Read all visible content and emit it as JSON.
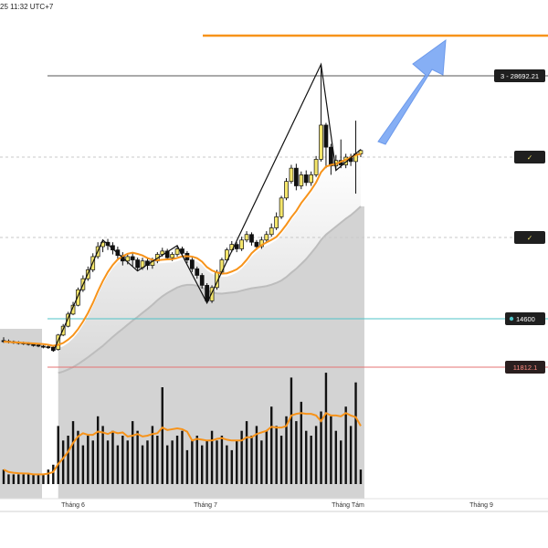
{
  "header": {
    "timestamp": "25 11:32 UTC+7"
  },
  "chart_data": {
    "type": "candlestick",
    "x_axis": {
      "tick_labels": [
        "Tháng 6",
        "Tháng 7",
        "Tháng Tám",
        "Tháng 9"
      ]
    },
    "price_labels": {
      "resistance": "3 - 28692.21",
      "check1": "✓",
      "check2": "✓",
      "level_14600": "14600",
      "level_11812": "11812.1"
    },
    "lines": {
      "target_color": "#f7931a",
      "resistance_color": "#555555",
      "teal_color": "#4fc3c7",
      "red_color": "#e57373"
    },
    "colors": {
      "candle_up": "#f5e66b",
      "candle_down": "#111111",
      "ma": "#f7931a",
      "arrow": "#7aa7f5",
      "volume": "#111111"
    },
    "candles": [
      [
        1.0,
        0.9,
        1.3,
        0.8
      ],
      [
        0.95,
        0.85,
        1.1,
        0.75
      ],
      [
        0.9,
        0.8,
        1.0,
        0.7
      ],
      [
        0.85,
        0.75,
        0.95,
        0.65
      ],
      [
        0.8,
        0.7,
        0.9,
        0.6
      ],
      [
        0.75,
        0.65,
        0.85,
        0.55
      ],
      [
        0.7,
        0.55,
        0.8,
        0.45
      ],
      [
        0.6,
        0.5,
        0.7,
        0.4
      ],
      [
        0.5,
        0.4,
        0.6,
        0.3
      ],
      [
        0.45,
        0.35,
        0.55,
        0.25
      ],
      [
        0.4,
        0.1,
        0.5,
        0.0
      ],
      [
        0.2,
        1.5,
        1.6,
        0.1
      ],
      [
        1.5,
        2.3,
        2.5,
        1.4
      ],
      [
        2.3,
        3.4,
        3.6,
        2.2
      ],
      [
        3.4,
        4.2,
        4.5,
        3.3
      ],
      [
        4.2,
        5.6,
        5.8,
        4.1
      ],
      [
        5.6,
        6.6,
        6.9,
        5.4
      ],
      [
        6.6,
        7.4,
        7.7,
        6.4
      ],
      [
        7.4,
        8.6,
        8.9,
        7.2
      ],
      [
        8.6,
        9.5,
        9.9,
        8.4
      ],
      [
        9.5,
        9.9,
        10.1,
        9.0
      ],
      [
        9.9,
        9.6,
        10.2,
        9.2
      ],
      [
        9.6,
        9.2,
        9.9,
        8.8
      ],
      [
        9.2,
        8.7,
        9.5,
        8.3
      ],
      [
        8.7,
        8.2,
        9.0,
        7.8
      ],
      [
        8.2,
        8.6,
        8.9,
        7.9
      ],
      [
        8.6,
        8.3,
        8.9,
        7.7
      ],
      [
        8.3,
        7.6,
        8.5,
        7.3
      ],
      [
        7.6,
        8.2,
        8.5,
        7.4
      ],
      [
        8.2,
        7.8,
        8.4,
        7.4
      ],
      [
        7.8,
        8.2,
        8.5,
        7.5
      ],
      [
        8.2,
        8.8,
        9.0,
        8.0
      ],
      [
        8.8,
        9.1,
        9.4,
        8.6
      ],
      [
        9.1,
        8.5,
        9.3,
        8.3
      ],
      [
        8.5,
        8.8,
        9.0,
        8.2
      ],
      [
        8.8,
        9.3,
        9.6,
        8.6
      ],
      [
        9.3,
        8.9,
        9.5,
        8.6
      ],
      [
        8.9,
        8.3,
        9.1,
        8.0
      ],
      [
        8.3,
        7.5,
        8.5,
        7.2
      ],
      [
        7.5,
        6.9,
        7.7,
        6.6
      ],
      [
        6.9,
        6.0,
        7.1,
        5.7
      ],
      [
        6.0,
        4.6,
        6.2,
        4.4
      ],
      [
        4.6,
        5.8,
        6.0,
        4.4
      ],
      [
        5.8,
        7.2,
        7.4,
        5.6
      ],
      [
        7.2,
        8.3,
        8.5,
        7.0
      ],
      [
        8.3,
        9.2,
        9.4,
        8.1
      ],
      [
        9.2,
        9.7,
        10.0,
        9.0
      ],
      [
        9.7,
        9.3,
        9.9,
        9.0
      ],
      [
        9.3,
        10.1,
        10.4,
        9.1
      ],
      [
        10.1,
        10.6,
        10.9,
        9.9
      ],
      [
        10.6,
        9.9,
        10.8,
        9.6
      ],
      [
        9.9,
        9.5,
        10.1,
        9.2
      ],
      [
        9.5,
        10.1,
        10.4,
        9.3
      ],
      [
        10.1,
        10.6,
        10.9,
        9.9
      ],
      [
        10.6,
        11.2,
        11.6,
        10.4
      ],
      [
        11.2,
        12.2,
        12.6,
        11.0
      ],
      [
        12.2,
        13.9,
        14.1,
        12.0
      ],
      [
        13.9,
        15.4,
        15.7,
        13.7
      ],
      [
        15.4,
        16.6,
        16.9,
        15.2
      ],
      [
        16.6,
        15.0,
        17.0,
        14.6
      ],
      [
        15.0,
        16.0,
        16.3,
        14.7
      ],
      [
        16.0,
        15.3,
        16.4,
        15.0
      ],
      [
        15.3,
        16.0,
        16.3,
        15.0
      ],
      [
        16.0,
        17.4,
        17.7,
        15.8
      ],
      [
        17.4,
        20.5,
        26.0,
        17.2
      ],
      [
        20.5,
        18.5,
        20.7,
        16.6
      ],
      [
        18.5,
        16.8,
        18.8,
        16.0
      ],
      [
        16.8,
        17.3,
        17.8,
        16.4
      ],
      [
        17.3,
        16.9,
        19.2,
        16.6
      ],
      [
        16.9,
        17.6,
        17.9,
        16.6
      ],
      [
        17.6,
        17.2,
        17.9,
        16.8
      ],
      [
        17.2,
        17.9,
        20.9,
        14.3
      ],
      [
        17.9,
        18.2,
        18.3,
        17.6
      ]
    ],
    "volume": [
      3,
      2,
      2,
      2,
      2,
      2,
      2,
      2,
      2,
      3,
      4,
      12,
      9,
      10,
      13,
      11,
      8,
      10,
      9,
      14,
      12,
      9,
      11,
      8,
      10,
      9,
      13,
      11,
      8,
      9,
      12,
      10,
      20,
      8,
      9,
      10,
      11,
      7,
      9,
      10,
      8,
      9,
      11,
      9,
      10,
      8,
      7,
      9,
      11,
      13,
      10,
      12,
      9,
      11,
      16,
      12,
      10,
      14,
      22,
      13,
      17,
      11,
      10,
      12,
      15,
      23,
      14,
      11,
      9,
      16,
      12,
      21,
      3
    ]
  }
}
